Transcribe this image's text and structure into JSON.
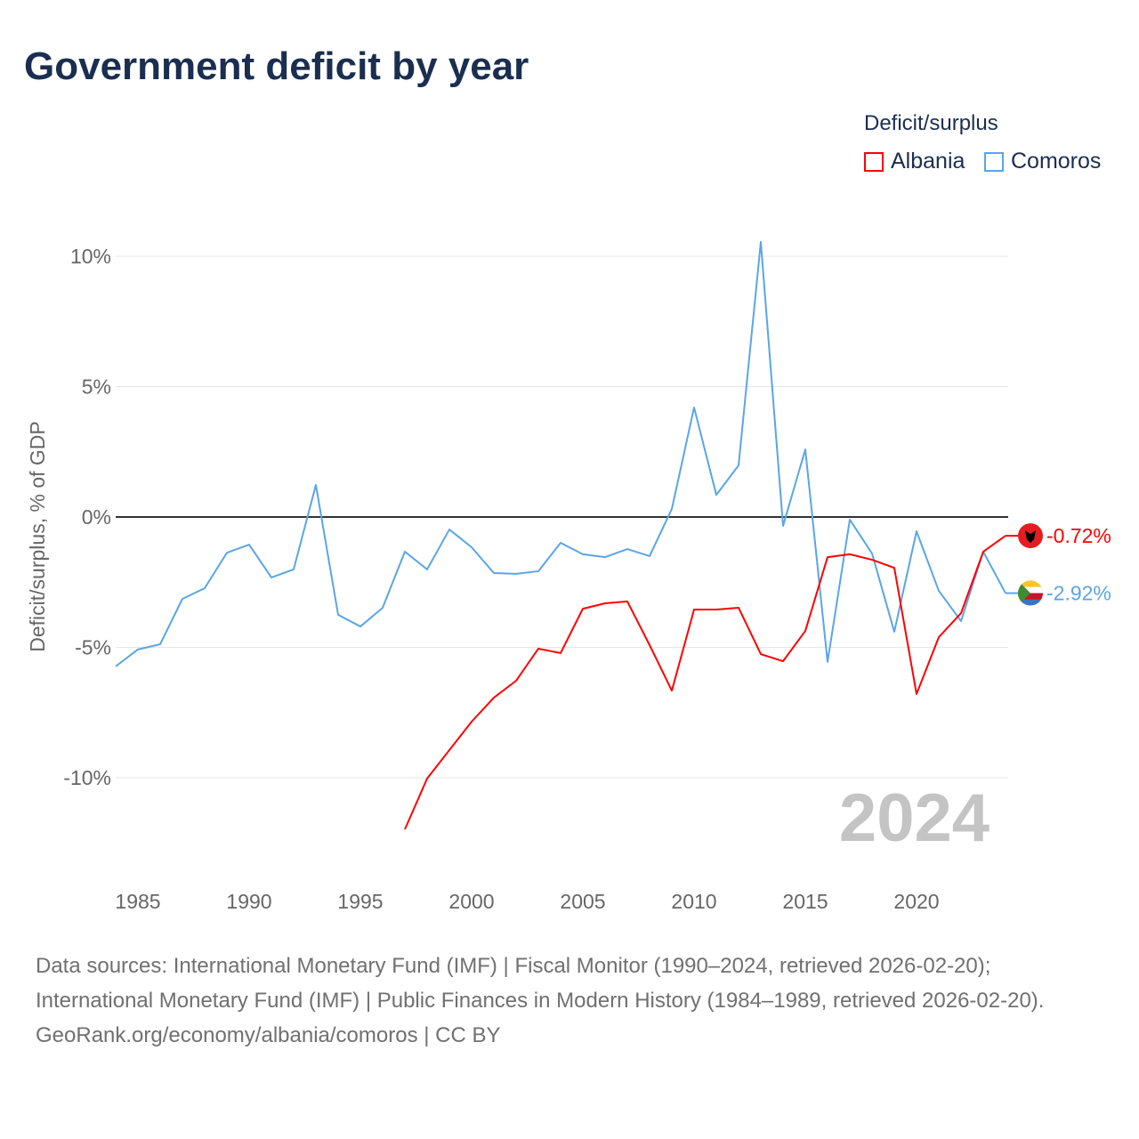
{
  "title": "Government deficit by year",
  "legend_title": "Deficit/surplus",
  "current_year": "2024",
  "colors": {
    "Albania": "#ff0000",
    "Comoros": "#5aa5e8"
  },
  "chart_data": {
    "type": "line",
    "title": "Government deficit by year",
    "xlabel": "",
    "ylabel": "Deficit/surplus, % of GDP",
    "xlim": [
      1984,
      2024
    ],
    "ylim": [
      -13.5,
      11
    ],
    "x_ticks": [
      1985,
      1990,
      1995,
      2000,
      2005,
      2010,
      2015,
      2020
    ],
    "x_tick_labels": [
      "1985",
      "1990",
      "1995",
      "2000",
      "2005",
      "2010",
      "2015",
      "2020"
    ],
    "y_ticks": [
      10,
      5,
      0,
      -5,
      -10
    ],
    "y_tick_labels": [
      "10%",
      "5%",
      "0%",
      "-5%",
      "-10%"
    ],
    "legend": [
      "Albania",
      "Comoros"
    ],
    "legend_position": "top-right",
    "series": [
      {
        "name": "Albania",
        "end_label": "-0.72%",
        "x": [
          1997,
          1998,
          1999,
          2000,
          2001,
          2002,
          2003,
          2004,
          2005,
          2006,
          2007,
          2008,
          2009,
          2010,
          2011,
          2012,
          2013,
          2014,
          2015,
          2016,
          2017,
          2018,
          2019,
          2020,
          2021,
          2022,
          2023,
          2024
        ],
        "values": [
          -11.98,
          -10.03,
          -8.94,
          -7.85,
          -6.93,
          -6.28,
          -5.05,
          -5.22,
          -3.52,
          -3.31,
          -3.24,
          -4.91,
          -6.66,
          -3.55,
          -3.55,
          -3.48,
          -5.26,
          -5.53,
          -4.37,
          -1.54,
          -1.43,
          -1.64,
          -1.95,
          -6.79,
          -4.61,
          -3.69,
          -1.33,
          -0.72
        ]
      },
      {
        "name": "Comoros",
        "end_label": "-2.92%",
        "x": [
          1984,
          1985,
          1986,
          1987,
          1988,
          1989,
          1990,
          1991,
          1992,
          1993,
          1994,
          1995,
          1996,
          1997,
          1998,
          1999,
          2000,
          2001,
          2002,
          2003,
          2004,
          2005,
          2006,
          2007,
          2008,
          2009,
          2010,
          2011,
          2012,
          2013,
          2014,
          2015,
          2016,
          2017,
          2018,
          2019,
          2020,
          2021,
          2022,
          2023,
          2024
        ],
        "values": [
          -5.73,
          -5.08,
          -4.88,
          -3.14,
          -2.73,
          -1.37,
          -1.06,
          -2.32,
          -2.01,
          1.23,
          -3.75,
          -4.2,
          -3.48,
          -1.33,
          -2.01,
          -0.48,
          -1.16,
          -2.15,
          -2.18,
          -2.08,
          -0.99,
          -1.43,
          -1.54,
          -1.23,
          -1.5,
          0.31,
          4.2,
          0.85,
          1.98,
          10.55,
          -0.34,
          2.59,
          -5.56,
          -0.1,
          -1.4,
          -4.4,
          -0.55,
          -2.83,
          -3.99,
          -1.33,
          -2.92
        ]
      }
    ]
  },
  "footer": {
    "sources": "Data sources: International Monetary Fund (IMF) | Fiscal Monitor (1990–2024, retrieved 2026-02-20); International Monetary Fund (IMF) | Public Finances in Modern History (1984–1989, retrieved 2026-02-20).",
    "link": "GeoRank.org/economy/albania/comoros | CC BY"
  }
}
